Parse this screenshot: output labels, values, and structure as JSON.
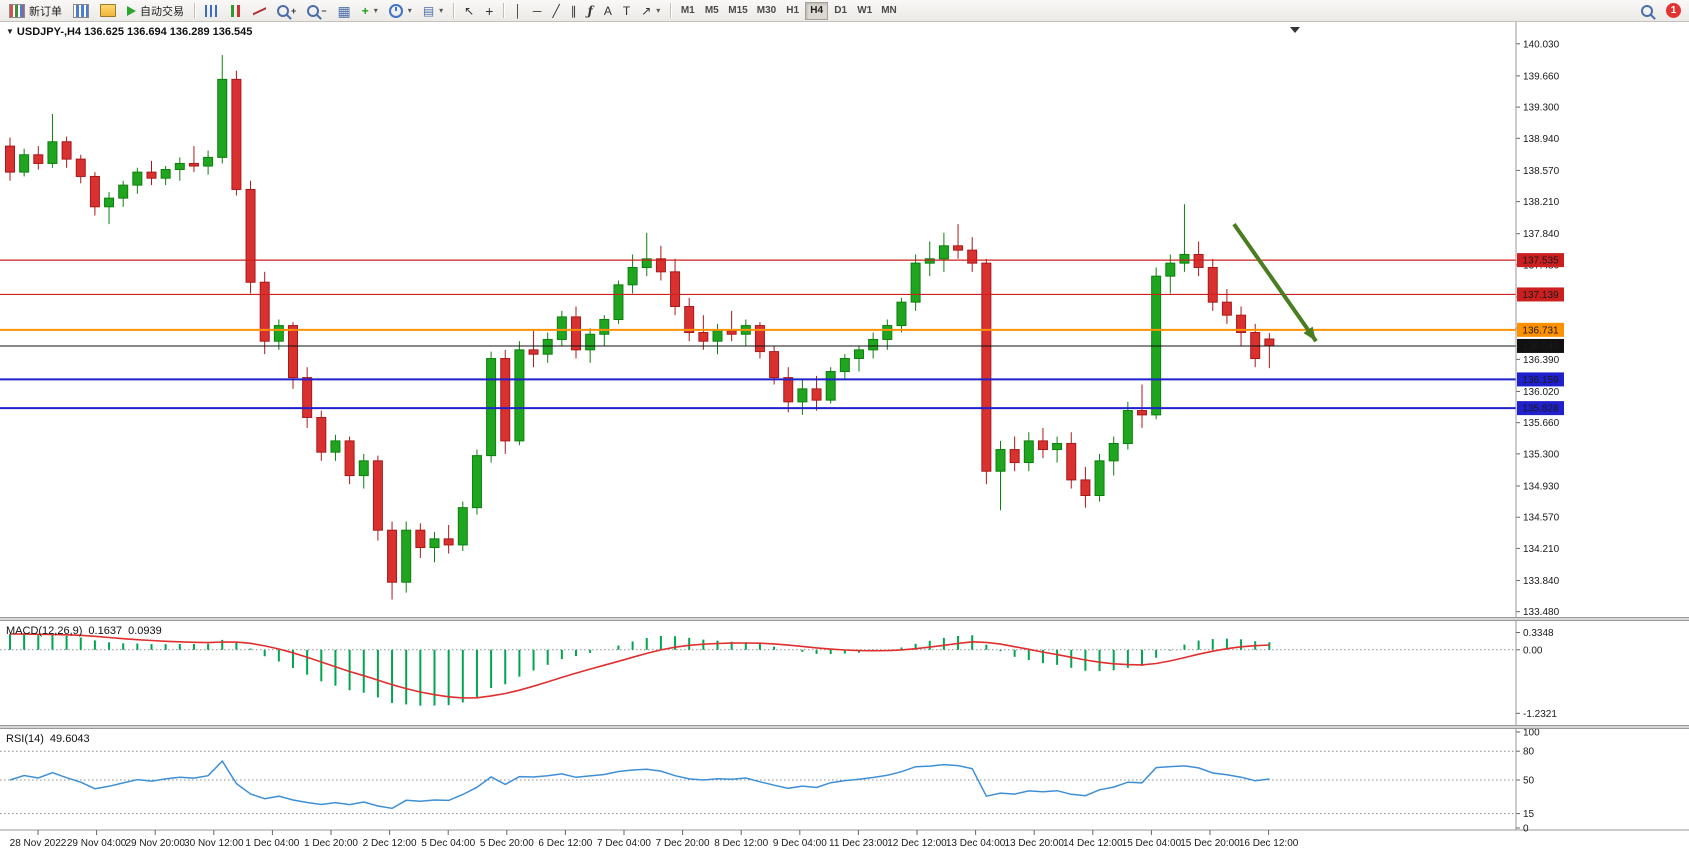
{
  "toolbar": {
    "new_order_label": "新订单",
    "auto_trading_label": "自动交易",
    "timeframes": [
      "M1",
      "M5",
      "M15",
      "M30",
      "H1",
      "H4",
      "D1",
      "W1",
      "MN"
    ],
    "active_timeframe": "H4",
    "notification_count": "1"
  },
  "icons": {
    "collapse": "▼",
    "caret": "▾",
    "plus": "+",
    "minus": "−",
    "tile": "▦",
    "template": "▤",
    "indicator_plus": "+",
    "cursor": "↖",
    "crosshair": "+",
    "vline": "│",
    "hline": "─",
    "trendline": "╱",
    "channel": "∥",
    "fibonacci": "ƒ",
    "text_tool": "A",
    "label_tool": "T",
    "arrows_tool": "↗"
  },
  "chart": {
    "title": "USDJPY-,H4 136.625 136.694 136.289 136.545"
  },
  "chart_data": {
    "type": "candlestick",
    "symbol": "USDJPY-",
    "timeframe": "H4",
    "current_ohlc": {
      "open": 136.625,
      "high": 136.694,
      "low": 136.289,
      "close": 136.545
    },
    "price_axis_labels": [
      "140.030",
      "139.660",
      "139.300",
      "138.940",
      "138.570",
      "138.210",
      "137.840",
      "137.480",
      "137.110",
      "136.750",
      "136.390",
      "136.020",
      "135.660",
      "135.300",
      "134.930",
      "134.570",
      "134.210",
      "133.840",
      "133.480"
    ],
    "time_axis_labels": [
      "28 Nov 2022",
      "29 Nov 04:00",
      "29 Nov 20:00",
      "30 Nov 12:00",
      "1 Dec 04:00",
      "1 Dec 20:00",
      "2 Dec 12:00",
      "5 Dec 04:00",
      "5 Dec 20:00",
      "6 Dec 12:00",
      "7 Dec 04:00",
      "7 Dec 20:00",
      "8 Dec 12:00",
      "9 Dec 04:00",
      "11 Dec 23:00",
      "12 Dec 12:00",
      "13 Dec 04:00",
      "13 Dec 20:00",
      "14 Dec 12:00",
      "15 Dec 04:00",
      "15 Dec 20:00",
      "16 Dec 12:00"
    ],
    "candles_ohlc": [
      [
        138.85,
        138.95,
        138.45,
        138.55
      ],
      [
        138.55,
        138.82,
        138.5,
        138.75
      ],
      [
        138.75,
        138.85,
        138.58,
        138.65
      ],
      [
        138.65,
        139.22,
        138.6,
        138.9
      ],
      [
        138.9,
        138.96,
        138.6,
        138.7
      ],
      [
        138.7,
        138.75,
        138.42,
        138.5
      ],
      [
        138.5,
        138.55,
        138.05,
        138.15
      ],
      [
        138.15,
        138.32,
        137.95,
        138.25
      ],
      [
        138.25,
        138.45,
        138.15,
        138.4
      ],
      [
        138.4,
        138.6,
        138.3,
        138.55
      ],
      [
        138.55,
        138.68,
        138.4,
        138.48
      ],
      [
        138.48,
        138.62,
        138.4,
        138.58
      ],
      [
        138.58,
        138.72,
        138.45,
        138.65
      ],
      [
        138.65,
        138.85,
        138.55,
        138.62
      ],
      [
        138.62,
        138.8,
        138.52,
        138.72
      ],
      [
        138.72,
        139.9,
        138.65,
        139.62
      ],
      [
        139.62,
        139.72,
        138.28,
        138.35
      ],
      [
        138.35,
        138.45,
        137.15,
        137.28
      ],
      [
        137.28,
        137.4,
        136.45,
        136.6
      ],
      [
        136.6,
        136.85,
        136.5,
        136.78
      ],
      [
        136.78,
        136.82,
        136.05,
        136.18
      ],
      [
        136.18,
        136.3,
        135.6,
        135.72
      ],
      [
        135.72,
        135.8,
        135.22,
        135.32
      ],
      [
        135.32,
        135.52,
        135.22,
        135.45
      ],
      [
        135.45,
        135.5,
        134.95,
        135.05
      ],
      [
        135.05,
        135.3,
        134.9,
        135.22
      ],
      [
        135.22,
        135.28,
        134.3,
        134.42
      ],
      [
        134.42,
        134.52,
        133.62,
        133.82
      ],
      [
        133.82,
        134.52,
        133.7,
        134.42
      ],
      [
        134.42,
        134.5,
        134.1,
        134.22
      ],
      [
        134.22,
        134.4,
        134.05,
        134.32
      ],
      [
        134.32,
        134.48,
        134.15,
        134.25
      ],
      [
        134.25,
        134.75,
        134.18,
        134.68
      ],
      [
        134.68,
        135.35,
        134.6,
        135.28
      ],
      [
        135.28,
        136.48,
        135.2,
        136.4
      ],
      [
        136.4,
        136.5,
        135.3,
        135.45
      ],
      [
        135.45,
        136.6,
        135.4,
        136.5
      ],
      [
        136.5,
        136.72,
        136.3,
        136.45
      ],
      [
        136.45,
        136.7,
        136.35,
        136.62
      ],
      [
        136.62,
        136.95,
        136.55,
        136.88
      ],
      [
        136.88,
        137.0,
        136.4,
        136.5
      ],
      [
        136.5,
        136.75,
        136.35,
        136.68
      ],
      [
        136.68,
        136.9,
        136.55,
        136.85
      ],
      [
        136.85,
        137.3,
        136.8,
        137.25
      ],
      [
        137.25,
        137.6,
        137.15,
        137.45
      ],
      [
        137.45,
        137.85,
        137.35,
        137.55
      ],
      [
        137.55,
        137.7,
        137.3,
        137.4
      ],
      [
        137.4,
        137.55,
        136.9,
        137.0
      ],
      [
        137.0,
        137.1,
        136.6,
        136.7
      ],
      [
        136.7,
        136.9,
        136.5,
        136.6
      ],
      [
        136.6,
        136.8,
        136.45,
        136.72
      ],
      [
        136.72,
        136.95,
        136.6,
        136.68
      ],
      [
        136.68,
        136.85,
        136.55,
        136.78
      ],
      [
        136.78,
        136.82,
        136.4,
        136.48
      ],
      [
        136.48,
        136.55,
        136.1,
        136.18
      ],
      [
        136.18,
        136.3,
        135.78,
        135.9
      ],
      [
        135.9,
        136.15,
        135.75,
        136.05
      ],
      [
        136.05,
        136.2,
        135.8,
        135.92
      ],
      [
        135.92,
        136.3,
        135.88,
        136.25
      ],
      [
        136.25,
        136.45,
        136.15,
        136.4
      ],
      [
        136.4,
        136.55,
        136.25,
        136.5
      ],
      [
        136.5,
        136.7,
        136.4,
        136.62
      ],
      [
        136.62,
        136.85,
        136.5,
        136.78
      ],
      [
        136.78,
        137.1,
        136.7,
        137.05
      ],
      [
        137.05,
        137.6,
        136.95,
        137.5
      ],
      [
        137.5,
        137.75,
        137.35,
        137.55
      ],
      [
        137.55,
        137.85,
        137.4,
        137.7
      ],
      [
        137.7,
        137.95,
        137.55,
        137.65
      ],
      [
        137.65,
        137.8,
        137.4,
        137.5
      ],
      [
        137.5,
        137.55,
        134.95,
        135.1
      ],
      [
        135.1,
        135.45,
        134.65,
        135.35
      ],
      [
        135.35,
        135.5,
        135.1,
        135.2
      ],
      [
        135.2,
        135.55,
        135.1,
        135.45
      ],
      [
        135.45,
        135.6,
        135.25,
        135.35
      ],
      [
        135.35,
        135.5,
        135.2,
        135.42
      ],
      [
        135.42,
        135.55,
        134.9,
        135.0
      ],
      [
        135.0,
        135.15,
        134.68,
        134.82
      ],
      [
        134.82,
        135.3,
        134.75,
        135.22
      ],
      [
        135.22,
        135.5,
        135.05,
        135.42
      ],
      [
        135.42,
        135.9,
        135.35,
        135.8
      ],
      [
        135.8,
        136.1,
        135.6,
        135.75
      ],
      [
        135.75,
        137.45,
        135.7,
        137.35
      ],
      [
        137.35,
        137.6,
        137.15,
        137.5
      ],
      [
        137.5,
        138.18,
        137.4,
        137.6
      ],
      [
        137.6,
        137.75,
        137.35,
        137.45
      ],
      [
        137.45,
        137.55,
        136.95,
        137.05
      ],
      [
        137.05,
        137.2,
        136.8,
        136.9
      ],
      [
        136.9,
        137.0,
        136.55,
        136.7
      ],
      [
        136.7,
        136.8,
        136.3,
        136.4
      ],
      [
        136.625,
        136.694,
        136.289,
        136.545
      ]
    ],
    "horizontal_lines": [
      {
        "price": 137.535,
        "label": "137.535",
        "color": "#cc2020",
        "width": 1.2
      },
      {
        "price": 137.139,
        "label": "137.139",
        "color": "#cc2020",
        "width": 1.2
      },
      {
        "price": 136.731,
        "label": "136.731",
        "color": "#ff9000",
        "width": 2
      },
      {
        "price": 136.545,
        "label": "136.545",
        "color": "#111111",
        "width": 1
      },
      {
        "price": 136.159,
        "label": "136.159",
        "color": "#2020cc",
        "width": 2
      },
      {
        "price": 135.828,
        "label": "135.828",
        "color": "#2020cc",
        "width": 2
      }
    ],
    "annotation_arrow": {
      "color": "#4a7d1f",
      "from": {
        "bar": 86.5,
        "price": 137.95
      },
      "to": {
        "bar": 92.3,
        "price": 136.6
      }
    },
    "indicators": {
      "macd": {
        "name": "MACD(12,26,9)",
        "main": "0.1637",
        "signal": "0.0939",
        "axis_labels": [
          "0.3348",
          "0.00",
          "-1.2321"
        ]
      },
      "rsi": {
        "name": "RSI(14)",
        "value": "49.6043",
        "levels": [
          80,
          50,
          15
        ],
        "axis_labels": [
          "100",
          "80",
          "50",
          "15",
          "0"
        ]
      }
    }
  },
  "colors": {
    "candle_up": "#1fa51f",
    "candle_up_border": "#0d800d",
    "candle_down": "#d93030",
    "candle_down_border": "#a81a1a",
    "macd_histogram": "#00a550",
    "macd_signal": "#e02f2f",
    "rsi_line": "#3e8fd6",
    "line_red": "#cc2020",
    "line_orange": "#ff9000",
    "line_blue": "#2020cc",
    "bid_line": "#111111",
    "arrow_green": "#4a7d1f"
  }
}
